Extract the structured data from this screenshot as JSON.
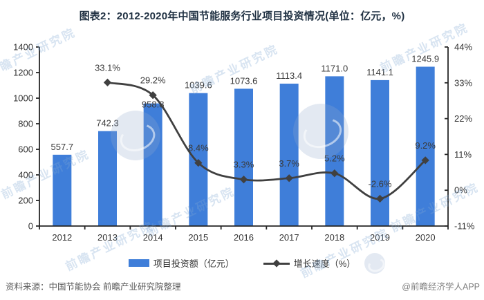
{
  "title": "图表2：2012-2020年中国节能服务行业项目投资情况(单位：亿元，%)",
  "chart_data": {
    "type": "bar+line",
    "categories": [
      "2012",
      "2013",
      "2014",
      "2015",
      "2016",
      "2017",
      "2018",
      "2019",
      "2020"
    ],
    "series": [
      {
        "name": "项目投资额（亿元）",
        "type": "bar",
        "axis": "left",
        "values": [
          557.7,
          742.3,
          958.8,
          1039.6,
          1073.6,
          1113.4,
          1171.0,
          1141.1,
          1245.9
        ]
      },
      {
        "name": "增长速度（%）",
        "type": "line",
        "axis": "right",
        "values": [
          null,
          33.1,
          29.2,
          8.4,
          3.3,
          3.7,
          5.2,
          -2.6,
          9.2
        ]
      }
    ],
    "left_axis": {
      "min": 0,
      "max": 1400,
      "ticks": [
        0,
        200,
        400,
        600,
        800,
        1000,
        1200,
        1400
      ]
    },
    "right_axis": {
      "min": -11,
      "max": 44,
      "ticks": [
        -11,
        0,
        11,
        22,
        33,
        44
      ],
      "suffix": "%"
    },
    "grid": false,
    "legend_position": "bottom",
    "bar_label_dy": [
      -7,
      -7,
      6,
      -7,
      -7,
      -7,
      -7,
      -7,
      -7
    ],
    "line_label_dy": -17
  },
  "legend": {
    "bar_label": "项目投资额（亿元）",
    "line_label": "增长速度（%）"
  },
  "footer": {
    "source": "资料来源：中国节能协会 前瞻产业研究院整理",
    "credit": "@前瞻经济学人APP"
  },
  "watermark": {
    "text": "前瞻产业研究院"
  },
  "colors": {
    "bar": "#3F7ED9",
    "line": "#404040",
    "axis": "#262626",
    "tick_label": "#333333",
    "data_label": "#3a3a3a",
    "title": "#1f3042"
  }
}
